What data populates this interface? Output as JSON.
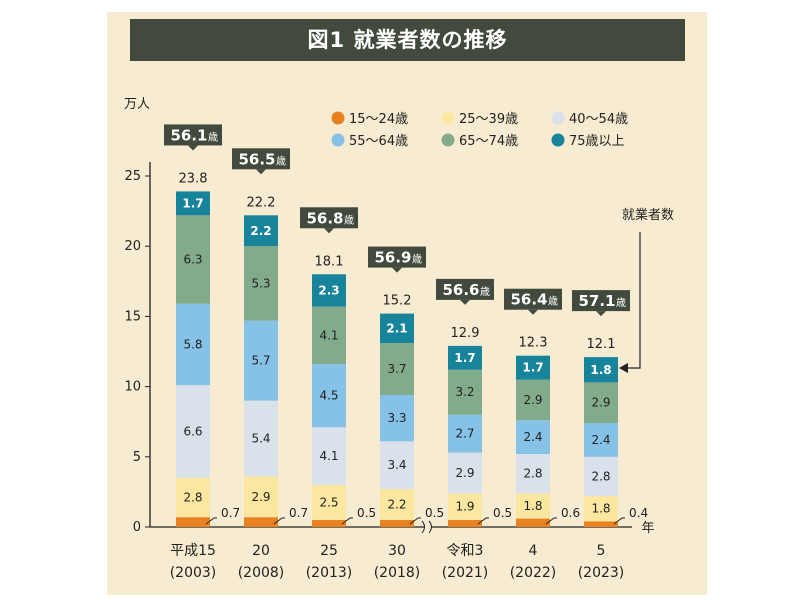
{
  "title": "図1 就業者数の推移",
  "chart_data": {
    "type": "bar",
    "stacked": true,
    "ylabel": "万人",
    "xlabel": "年",
    "ylim": [
      0,
      25
    ],
    "yticks": [
      0,
      5,
      10,
      15,
      20,
      25
    ],
    "categories": [
      {
        "line1": "平成15",
        "line2": "(2003)"
      },
      {
        "line1": "20",
        "line2": "(2008)"
      },
      {
        "line1": "25",
        "line2": "(2013)"
      },
      {
        "line1": "30",
        "line2": "(2018)"
      },
      {
        "line1": "令和3",
        "line2": "(2021)"
      },
      {
        "line1": "4",
        "line2": "(2022)"
      },
      {
        "line1": "5",
        "line2": "(2023)"
      }
    ],
    "series": [
      {
        "name": "15〜24歳",
        "color": "#e8811f",
        "values": [
          0.7,
          0.7,
          0.5,
          0.5,
          0.5,
          0.6,
          0.4
        ],
        "labels_outside": true
      },
      {
        "name": "25〜39歳",
        "color": "#fbe7a0",
        "values": [
          2.8,
          2.9,
          2.5,
          2.2,
          1.9,
          1.8,
          1.8
        ]
      },
      {
        "name": "40〜54歳",
        "color": "#d9e2ea",
        "values": [
          6.6,
          5.4,
          4.1,
          3.4,
          2.9,
          2.8,
          2.8
        ]
      },
      {
        "name": "55〜64歳",
        "color": "#86c1e8",
        "values": [
          5.8,
          5.7,
          4.5,
          3.3,
          2.7,
          2.4,
          2.4
        ]
      },
      {
        "name": "65〜74歳",
        "color": "#82ab8b",
        "values": [
          6.3,
          5.3,
          4.1,
          3.7,
          3.2,
          2.9,
          2.9
        ]
      },
      {
        "name": "75歳以上",
        "color": "#17849c",
        "values": [
          1.7,
          2.2,
          2.3,
          2.1,
          1.7,
          1.7,
          1.8
        ],
        "light_text": true
      }
    ],
    "totals": [
      "23.8",
      "22.2",
      "18.1",
      "15.2",
      "12.9",
      "12.3",
      "12.1"
    ],
    "average_ages": [
      "56.1",
      "56.5",
      "56.8",
      "56.9",
      "56.6",
      "56.4",
      "57.1"
    ],
    "age_unit": "歳",
    "annotation": "就業者数",
    "legend_position": "top-right"
  }
}
